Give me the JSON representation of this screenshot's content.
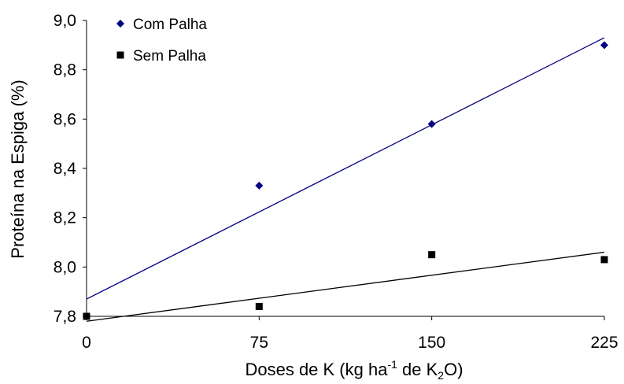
{
  "chart_data": {
    "type": "scatter",
    "xlabel": {
      "main": "Doses de K (kg ha",
      "sup": "-1",
      "mid": " de K",
      "sub": "2",
      "end": "O)"
    },
    "ylabel": "Proteína na Espiga (%)",
    "x_ticks": [
      "0",
      "75",
      "150",
      "225"
    ],
    "y_ticks": [
      "7,8",
      "8,0",
      "8,2",
      "8,4",
      "8,6",
      "8,8",
      "9,0"
    ],
    "xlim": [
      0,
      225
    ],
    "ylim": [
      7.8,
      9.0
    ],
    "grid": false,
    "legend_position": "top-left",
    "series": [
      {
        "name": "Com Palha",
        "marker": "diamond",
        "color": "#000080",
        "x": [
          0,
          75,
          150,
          225
        ],
        "y": [
          7.8,
          8.33,
          8.58,
          8.9
        ],
        "trendline": {
          "x": [
            0,
            225
          ],
          "y": [
            7.87,
            8.93
          ]
        }
      },
      {
        "name": "Sem Palha",
        "marker": "square",
        "color": "#000000",
        "x": [
          0,
          75,
          150,
          225
        ],
        "y": [
          7.8,
          7.84,
          8.05,
          8.03
        ],
        "trendline": {
          "x": [
            0,
            225
          ],
          "y": [
            7.78,
            8.06
          ]
        }
      }
    ]
  }
}
